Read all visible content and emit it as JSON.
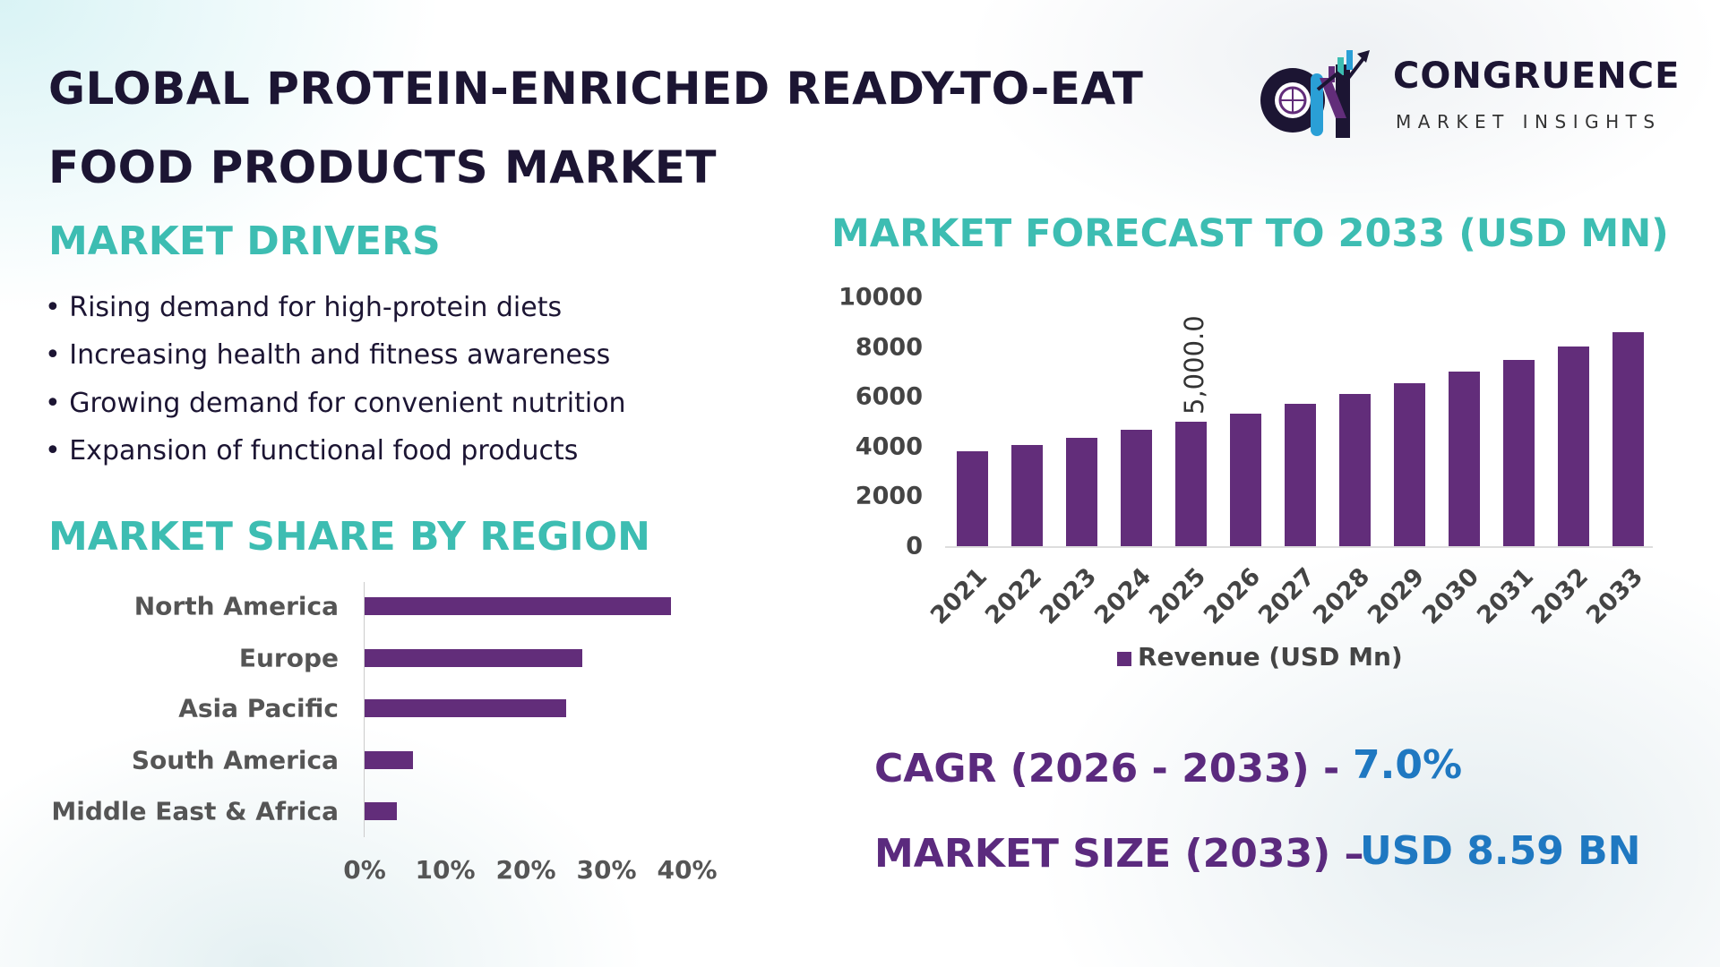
{
  "header": {
    "title_line1": "GLOBAL PROTEIN-ENRICHED READY-TO-EAT",
    "title_line2": "FOOD PRODUCTS MARKET"
  },
  "logo": {
    "name": "CONGRUENCE",
    "tagline": "MARKET INSIGHTS"
  },
  "drivers": {
    "heading": "MARKET DRIVERS",
    "items": [
      "• Rising demand for high-protein diets",
      "• Increasing health and fitness awareness",
      "• Growing demand for convenient nutrition",
      "• Expansion of functional food products"
    ]
  },
  "region": {
    "heading": "MARKET SHARE BY REGION"
  },
  "forecast": {
    "heading": "MARKET FORECAST TO 2033 (USD MN)"
  },
  "kpis": {
    "cagr_label": "CAGR (2026 - 2033) -",
    "cagr_value": "7.0%",
    "size_label": "MARKET SIZE (2033) –",
    "size_value": "USD 8.59 BN"
  },
  "colors": {
    "bar": "#622d7a",
    "heading": "#3dbdb2",
    "kpi_label": "#5b2a7e",
    "kpi_value": "#1f78c1",
    "title": "#1c1533"
  },
  "chart_data": [
    {
      "type": "bar",
      "orientation": "horizontal",
      "categories": [
        "North America",
        "Europe",
        "Asia Pacific",
        "South America",
        "Middle East & Africa"
      ],
      "values": [
        38,
        27,
        25,
        6,
        4
      ],
      "unit": "%",
      "xlim": [
        0,
        40
      ],
      "xticks": [
        "0%",
        "10%",
        "20%",
        "30%",
        "40%"
      ],
      "grid": false
    },
    {
      "type": "bar",
      "categories": [
        "2021",
        "2022",
        "2023",
        "2024",
        "2025",
        "2026",
        "2027",
        "2028",
        "2029",
        "2030",
        "2031",
        "2032",
        "2033"
      ],
      "series": [
        {
          "name": "Revenue (USD Mn)",
          "values": [
            3810,
            4070,
            4350,
            4680,
            5000,
            5320,
            5720,
            6120,
            6550,
            7010,
            7480,
            8020,
            8590
          ]
        }
      ],
      "data_labels": [
        {
          "category": "2025",
          "text": "5,000.0"
        }
      ],
      "ylim": [
        0,
        10000
      ],
      "yticks": [
        "0",
        "2000",
        "4000",
        "6000",
        "8000",
        "10000"
      ],
      "legend": "bottom",
      "grid": false
    }
  ]
}
